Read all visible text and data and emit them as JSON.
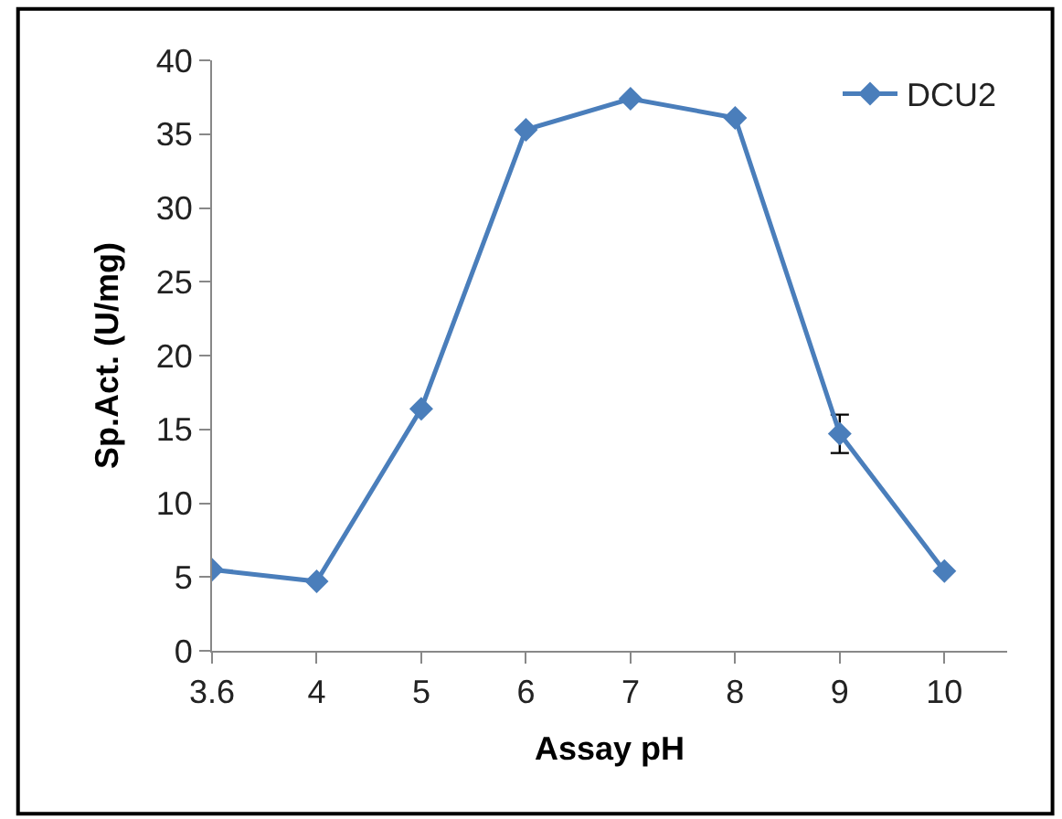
{
  "chart_data": {
    "type": "line",
    "xlabel": "Assay pH",
    "ylabel": "Sp.Act. (U/mg)",
    "categories": [
      "3.6",
      "4",
      "5",
      "6",
      "7",
      "8",
      "9",
      "10"
    ],
    "series": [
      {
        "name": "DCU2",
        "color": "#4a7ebb",
        "values": [
          5.5,
          4.7,
          16.4,
          35.3,
          37.4,
          36.1,
          14.7,
          5.4
        ],
        "errors": [
          null,
          null,
          null,
          null,
          null,
          null,
          1.3,
          null
        ]
      }
    ],
    "ylim": [
      0,
      40
    ],
    "yticks": [
      0,
      5,
      10,
      15,
      20,
      25,
      30,
      35,
      40
    ],
    "legend": "top right",
    "marker": "diamond",
    "line_style": "solid"
  }
}
